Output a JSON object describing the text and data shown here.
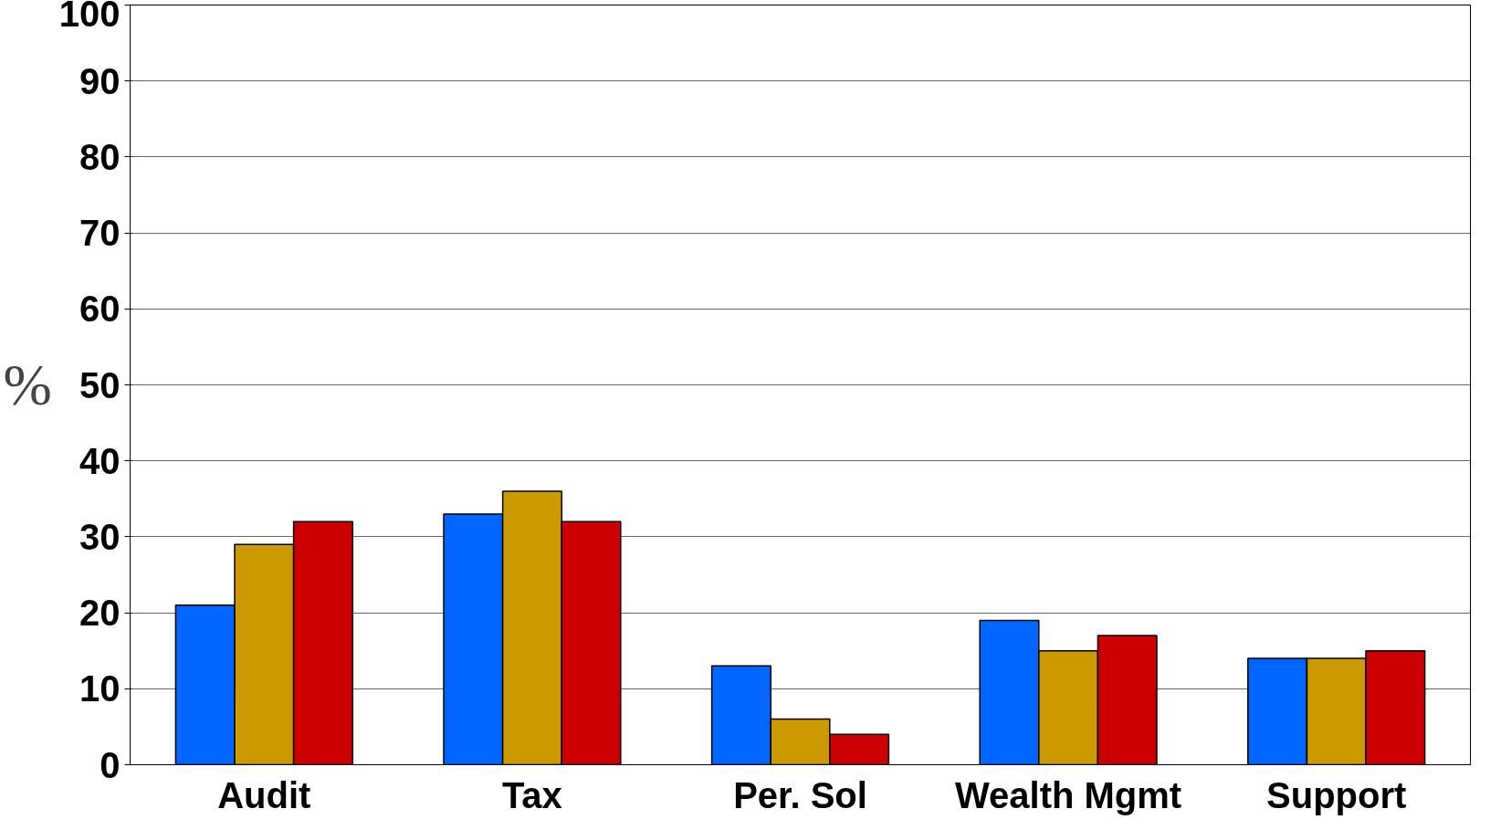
{
  "chart_data": {
    "type": "bar",
    "ylabel": "%",
    "categories": [
      "Audit",
      "Tax",
      "Per. Sol",
      "Wealth Mgmt",
      "Support"
    ],
    "series": [
      {
        "color": "#0066ff",
        "values": [
          21,
          33,
          13,
          19,
          14
        ]
      },
      {
        "color": "#cc9900",
        "values": [
          29,
          36,
          6,
          15,
          14
        ]
      },
      {
        "color": "#cc0000",
        "values": [
          32,
          32,
          4,
          17,
          15
        ]
      }
    ],
    "ylim": [
      0,
      100
    ],
    "yticks": [
      0,
      10,
      20,
      30,
      40,
      50,
      60,
      70,
      80,
      90,
      100
    ],
    "grid": "y"
  }
}
